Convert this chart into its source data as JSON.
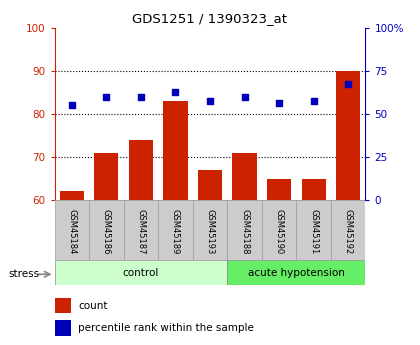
{
  "title": "GDS1251 / 1390323_at",
  "samples": [
    "GSM45184",
    "GSM45186",
    "GSM45187",
    "GSM45189",
    "GSM45193",
    "GSM45188",
    "GSM45190",
    "GSM45191",
    "GSM45192"
  ],
  "bar_values": [
    62,
    71,
    74,
    83,
    67,
    71,
    65,
    65,
    90
  ],
  "dot_values_left_scale": [
    82,
    84,
    84,
    85,
    83,
    84,
    82.5,
    83,
    87
  ],
  "bar_color": "#cc2200",
  "dot_color": "#0000bb",
  "ylim_left": [
    60,
    100
  ],
  "ylim_right": [
    0,
    100
  ],
  "yticks_left": [
    60,
    70,
    80,
    90,
    100
  ],
  "yticks_right": [
    0,
    25,
    50,
    75,
    100
  ],
  "ytick_labels_right": [
    "0",
    "25",
    "50",
    "75",
    "100%"
  ],
  "grid_values": [
    70,
    80,
    90
  ],
  "control_indices": [
    0,
    1,
    2,
    3,
    4
  ],
  "acute_indices": [
    5,
    6,
    7,
    8
  ],
  "control_label": "control",
  "acute_label": "acute hypotension",
  "control_color": "#ccffcc",
  "acute_color": "#66ee66",
  "tick_bg_color": "#cccccc",
  "legend_count_label": "count",
  "legend_pct_label": "percentile rank within the sample",
  "stress_label": "stress"
}
